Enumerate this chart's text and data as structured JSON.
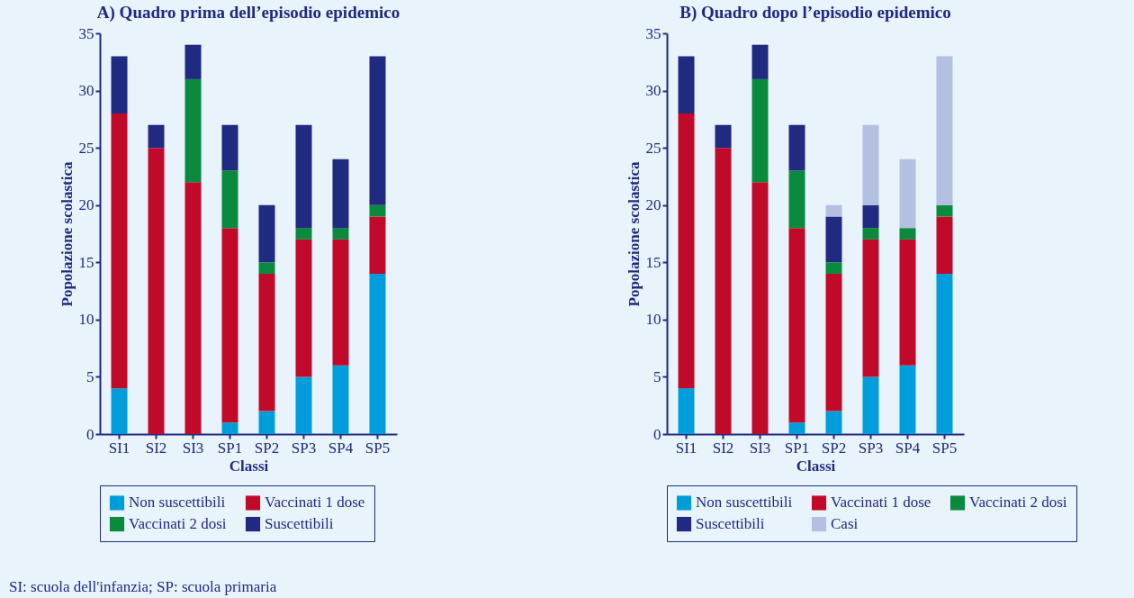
{
  "chart_data": [
    {
      "type": "bar",
      "title": "A) Quadro prima dell’episodio epidemico",
      "xlabel": "Classi",
      "ylabel": "Popolazione scolastica",
      "categories": [
        "SI1",
        "SI2",
        "SI3",
        "SP1",
        "SP2",
        "SP3",
        "SP4",
        "SP5"
      ],
      "stacked": true,
      "ylim": [
        0,
        35
      ],
      "yticks": [
        0,
        5,
        10,
        15,
        20,
        25,
        30,
        35
      ],
      "legend": "bottom",
      "annotations": [
        "SI: scuola dell'infanzia; SP: scuola primaria"
      ],
      "series": [
        {
          "name": "Non suscettibili",
          "color": "#009ddc",
          "values": [
            4,
            0,
            0,
            1,
            2,
            5,
            6,
            14
          ]
        },
        {
          "name": "Vaccinati 1 dose",
          "color": "#c10a2a",
          "values": [
            24,
            25,
            22,
            17,
            12,
            12,
            11,
            5
          ]
        },
        {
          "name": "Vaccinati 2 dosi",
          "color": "#0a8a3c",
          "values": [
            0,
            0,
            9,
            5,
            1,
            1,
            1,
            1
          ]
        },
        {
          "name": "Suscettibili",
          "color": "#1f2a80",
          "values": [
            5,
            2,
            3,
            4,
            5,
            9,
            6,
            13
          ]
        }
      ]
    },
    {
      "type": "bar",
      "title": "B) Quadro dopo l’episodio epidemico",
      "xlabel": "Classi",
      "ylabel": "Popolazione scolastica",
      "categories": [
        "SI1",
        "SI2",
        "SI3",
        "SP1",
        "SP2",
        "SP3",
        "SP4",
        "SP5"
      ],
      "stacked": true,
      "ylim": [
        0,
        35
      ],
      "yticks": [
        0,
        5,
        10,
        15,
        20,
        25,
        30,
        35
      ],
      "legend": "bottom",
      "series": [
        {
          "name": "Non suscettibili",
          "color": "#009ddc",
          "values": [
            4,
            0,
            0,
            1,
            2,
            5,
            6,
            14
          ]
        },
        {
          "name": "Vaccinati 1 dose",
          "color": "#c10a2a",
          "values": [
            24,
            25,
            22,
            17,
            12,
            12,
            11,
            5
          ]
        },
        {
          "name": "Vaccinati 2 dosi",
          "color": "#0a8a3c",
          "values": [
            0,
            0,
            9,
            5,
            1,
            1,
            1,
            1
          ]
        },
        {
          "name": "Suscettibili",
          "color": "#1f2a80",
          "values": [
            5,
            2,
            3,
            4,
            4,
            2,
            0,
            0
          ]
        },
        {
          "name": "Casi",
          "color": "#b3c0e2",
          "values": [
            0,
            0,
            0,
            0,
            1,
            7,
            6,
            13
          ]
        }
      ]
    }
  ]
}
